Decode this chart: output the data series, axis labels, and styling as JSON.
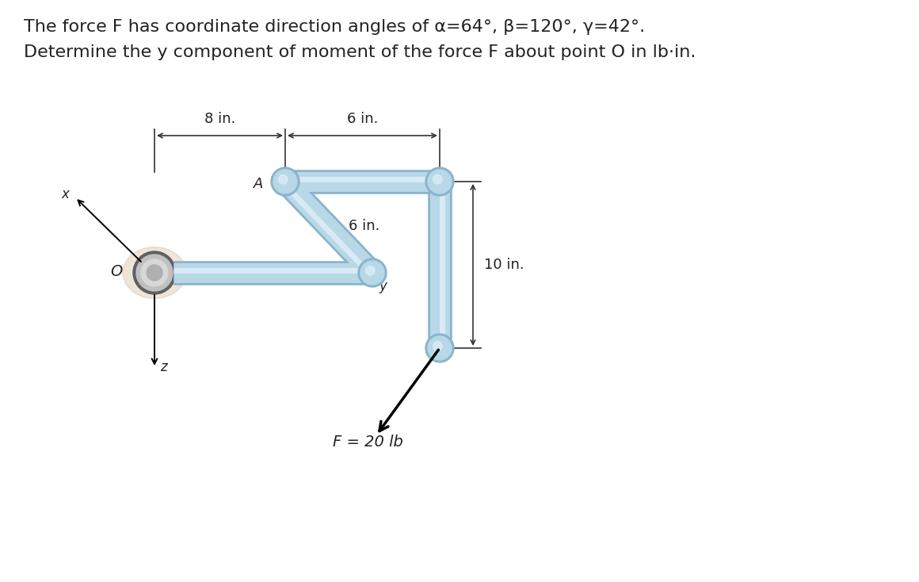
{
  "title_line1": "The force F has coordinate direction angles of α=64°, β=120°, γ=42°.",
  "title_line2": "Determine the y component of moment of the force F about point O in lb·in.",
  "F_label": "F = 20 lb",
  "dim_10": "10 in.",
  "dim_6_diag": "6 in.",
  "dim_8": "8 in.",
  "dim_6_horiz": "6 in.",
  "label_O": "O",
  "label_A": "A",
  "label_x": "x",
  "label_y": "y",
  "label_z": "z",
  "pipe_color": "#b8d8e8",
  "pipe_edge_color": "#8ab4cc",
  "pipe_highlight": "#deeef8",
  "pipe_lw": 18,
  "bg_color": "#ffffff",
  "text_color": "#222222",
  "glow_color": "#c8a880",
  "wall_disc_outer": "#c0c0c0",
  "wall_disc_inner": "#d8d8d8",
  "wall_disc_center": "#b0b0b0"
}
